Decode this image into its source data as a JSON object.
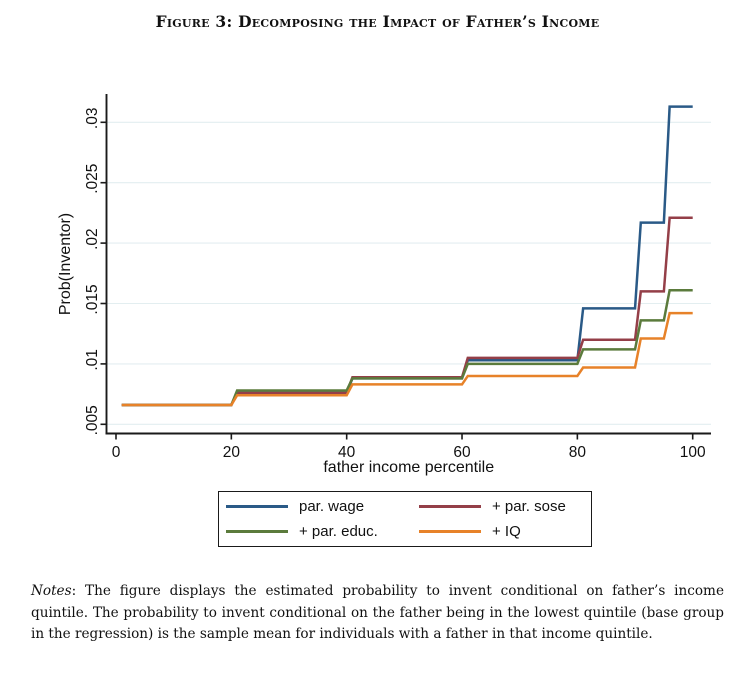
{
  "figure": {
    "title": "Figure 3: Decomposing the Impact of Father’s Income"
  },
  "notes": {
    "label": "Notes",
    "text": ": The figure displays the estimated probability to invent conditional on father’s income quintile. The probability to invent conditional on the father being in the lowest quintile (base group in the regression) is the sample mean for individuals with a father in that income quintile."
  },
  "chart_data": {
    "type": "line",
    "subtype": "step",
    "title": "Figure 3: Decomposing the Impact of Father’s Income",
    "xlabel": "father income percentile",
    "ylabel": "Prob(Inventor)",
    "xlim": [
      -1.6,
      103.2
    ],
    "ylim": [
      0.0042,
      0.0323
    ],
    "xticks": [
      0,
      20,
      40,
      60,
      80,
      100
    ],
    "xtick_labels": [
      "0",
      "20",
      "40",
      "60",
      "80",
      "100"
    ],
    "yticks": [
      0.005,
      0.01,
      0.015,
      0.02,
      0.025,
      0.03
    ],
    "ytick_labels": [
      ".005",
      ".01",
      ".015",
      ".02",
      ".025",
      ".03"
    ],
    "grid": "horizontal",
    "grid_color": "#e3eef0",
    "axis_color": "#1a1a1a",
    "legend_position": "bottom-center-box",
    "segments": [
      [
        1,
        20
      ],
      [
        21,
        40
      ],
      [
        41,
        60
      ],
      [
        61,
        80
      ],
      [
        81,
        90
      ],
      [
        91,
        95
      ],
      [
        96,
        100
      ]
    ],
    "series": [
      {
        "name": "par. wage",
        "color": "#2a5a87",
        "values": [
          0.0066,
          0.0076,
          0.0088,
          0.0103,
          0.0146,
          0.0217,
          0.0313
        ]
      },
      {
        "name": "+ par. sose",
        "color": "#943f48",
        "values": [
          0.0066,
          0.0076,
          0.0089,
          0.0105,
          0.012,
          0.016,
          0.0221
        ]
      },
      {
        "name": "+ par. educ.",
        "color": "#5b7b3c",
        "values": [
          0.0066,
          0.0078,
          0.0088,
          0.01,
          0.0112,
          0.0136,
          0.0161
        ]
      },
      {
        "name": "+ IQ",
        "color": "#e78229",
        "values": [
          0.0066,
          0.0074,
          0.0083,
          0.009,
          0.0097,
          0.0121,
          0.0142
        ]
      }
    ]
  }
}
